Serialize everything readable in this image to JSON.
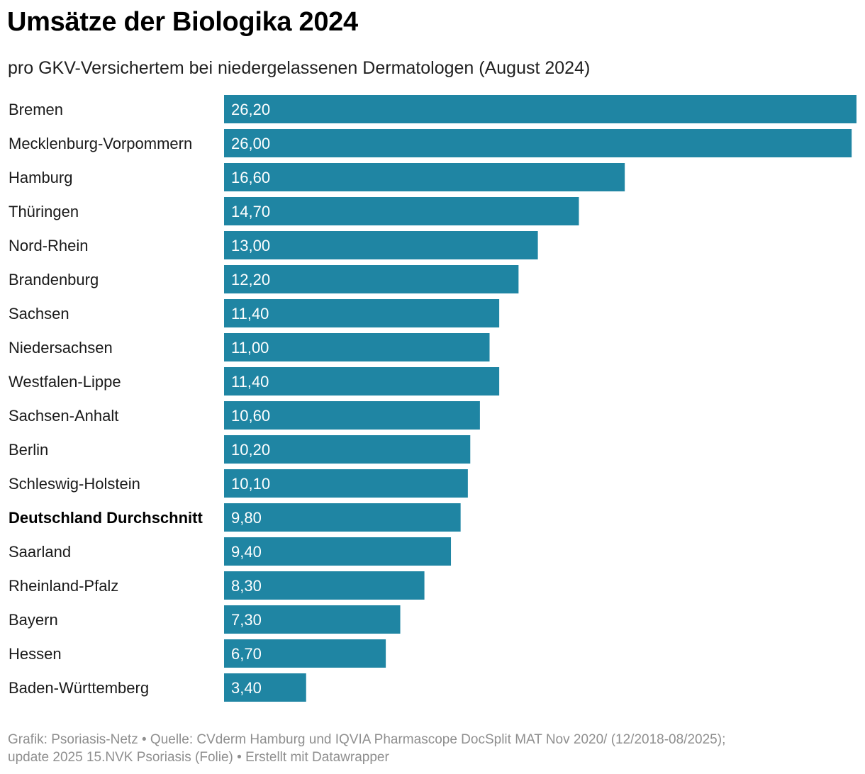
{
  "title": "Umsätze der Biologika 2024",
  "subtitle": "pro GKV-Versichertem bei niedergelassenen Dermatologen (August 2024)",
  "footer": {
    "line1": "Grafik: Psoriasis-Netz • Quelle: CVderm Hamburg und IQVIA Pharmascope DocSplit MAT Nov 2020/ (12/2018-08/2025);",
    "line2": "update 2025 15.NVK Psoriasis (Folie) • Erstellt mit Datawrapper"
  },
  "colors": {
    "bar": "#1f85a3",
    "value_text": "#ffffff"
  },
  "chart_data": {
    "type": "bar",
    "orientation": "horizontal",
    "categories": [
      "Bremen",
      "Mecklenburg-Vorpommern",
      "Hamburg",
      "Thüringen",
      "Nord-Rhein",
      "Brandenburg",
      "Sachsen",
      "Niedersachsen",
      "Westfalen-Lippe",
      "Sachsen-Anhalt",
      "Berlin",
      "Schleswig-Holstein",
      "Deutschland Durchschnitt",
      "Saarland",
      "Rheinland-Pfalz",
      "Bayern",
      "Hessen",
      "Baden-Württemberg"
    ],
    "values": [
      26.2,
      26.0,
      16.6,
      14.7,
      13.0,
      12.2,
      11.4,
      11.0,
      11.4,
      10.6,
      10.2,
      10.1,
      9.8,
      9.4,
      8.3,
      7.3,
      6.7,
      3.4
    ],
    "value_labels": [
      "26,20",
      "26,00",
      "16,60",
      "14,70",
      "13,00",
      "12,20",
      "11,40",
      "11,00",
      "11,40",
      "10,60",
      "10,20",
      "10,10",
      "9,80",
      "9,40",
      "8,30",
      "7,30",
      "6,70",
      "3,40"
    ],
    "highlight_category": "Deutschland Durchschnitt",
    "xlim": [
      0,
      26.2
    ],
    "grid": false,
    "legend": "none"
  }
}
